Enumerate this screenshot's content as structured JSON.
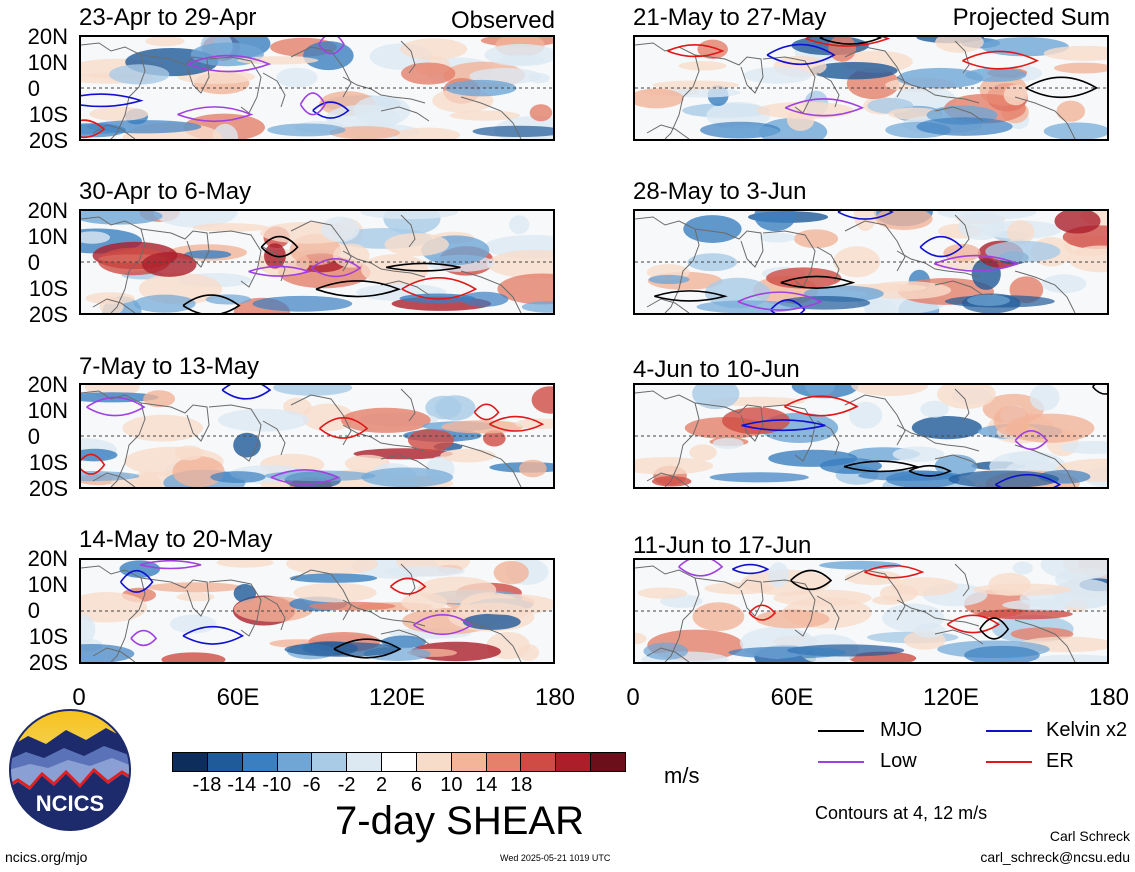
{
  "panels": [
    {
      "title": "23-Apr to 29-Apr",
      "tag": "Observed"
    },
    {
      "title": "21-May to 27-May",
      "tag": "Projected Sum"
    },
    {
      "title": "30-Apr to 6-May",
      "tag": ""
    },
    {
      "title": "28-May to 3-Jun",
      "tag": ""
    },
    {
      "title": "7-May to 13-May",
      "tag": ""
    },
    {
      "title": "4-Jun to 10-Jun",
      "tag": ""
    },
    {
      "title": "14-May to 20-May",
      "tag": ""
    },
    {
      "title": "11-Jun to 17-Jun",
      "tag": ""
    }
  ],
  "lat_labels": [
    "20N",
    "10N",
    "0",
    "10S",
    "20S"
  ],
  "lon_labels": [
    "0",
    "60E",
    "120E",
    "180"
  ],
  "colorbar": {
    "ticks": [
      "-18",
      "-14",
      "-10",
      "-6",
      "-2",
      "2",
      "6",
      "10",
      "14",
      "18"
    ],
    "colors": [
      "#0d2e5c",
      "#1f5a99",
      "#3b7fc0",
      "#6fa6d6",
      "#a9cbe6",
      "#dce9f3",
      "#ffffff",
      "#f8dcca",
      "#f3b49a",
      "#e5806a",
      "#cf4c44",
      "#ab1e2a",
      "#6b0f1a"
    ],
    "units": "m/s"
  },
  "title": "7-day SHEAR",
  "legend": [
    {
      "label": "MJO",
      "color": "#000000"
    },
    {
      "label": "Kelvin x2",
      "color": "#1010d0"
    },
    {
      "label": "Low",
      "color": "#a040e0"
    },
    {
      "label": "ER",
      "color": "#e01818"
    }
  ],
  "contours_note": "Contours at 4, 12 m/s",
  "credit_name": "Carl Schreck",
  "credit_email": "carl_schreck@ncsu.edu",
  "footer_url": "ncics.org/mjo",
  "footer_date": "Wed 2025-05-21 1019 UTC",
  "logo_text": "NCICS"
}
